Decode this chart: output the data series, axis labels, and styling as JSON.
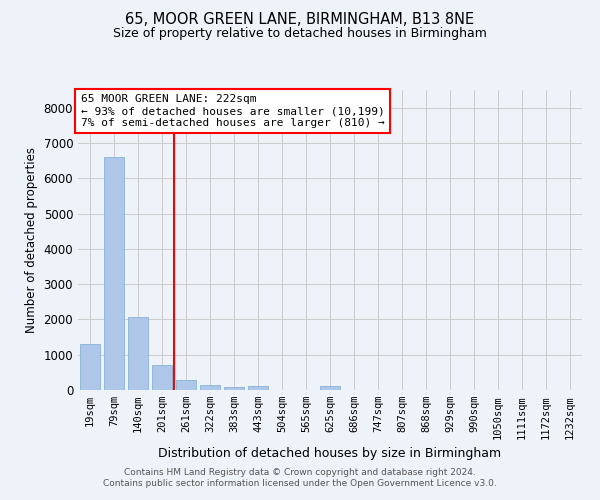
{
  "title": "65, MOOR GREEN LANE, BIRMINGHAM, B13 8NE",
  "subtitle": "Size of property relative to detached houses in Birmingham",
  "xlabel": "Distribution of detached houses by size in Birmingham",
  "ylabel": "Number of detached properties",
  "footer_line1": "Contains HM Land Registry data © Crown copyright and database right 2024.",
  "footer_line2": "Contains public sector information licensed under the Open Government Licence v3.0.",
  "bar_labels": [
    "19sqm",
    "79sqm",
    "140sqm",
    "201sqm",
    "261sqm",
    "322sqm",
    "383sqm",
    "443sqm",
    "504sqm",
    "565sqm",
    "625sqm",
    "686sqm",
    "747sqm",
    "807sqm",
    "868sqm",
    "929sqm",
    "990sqm",
    "1050sqm",
    "1111sqm",
    "1172sqm",
    "1232sqm"
  ],
  "bar_values": [
    1300,
    6600,
    2060,
    700,
    290,
    130,
    80,
    100,
    0,
    0,
    100,
    0,
    0,
    0,
    0,
    0,
    0,
    0,
    0,
    0,
    0
  ],
  "bar_color": "#aec6e8",
  "bar_edge_color": "#7aadd4",
  "grid_color": "#cccccc",
  "background_color": "#eef2f9",
  "annotation_text": "65 MOOR GREEN LANE: 222sqm\n← 93% of detached houses are smaller (10,199)\n7% of semi-detached houses are larger (810) →",
  "annotation_box_color": "white",
  "annotation_box_edge_color": "red",
  "vline_x": 3.5,
  "vline_color": "red",
  "ylim": [
    0,
    8500
  ],
  "yticks": [
    0,
    1000,
    2000,
    3000,
    4000,
    5000,
    6000,
    7000,
    8000
  ]
}
